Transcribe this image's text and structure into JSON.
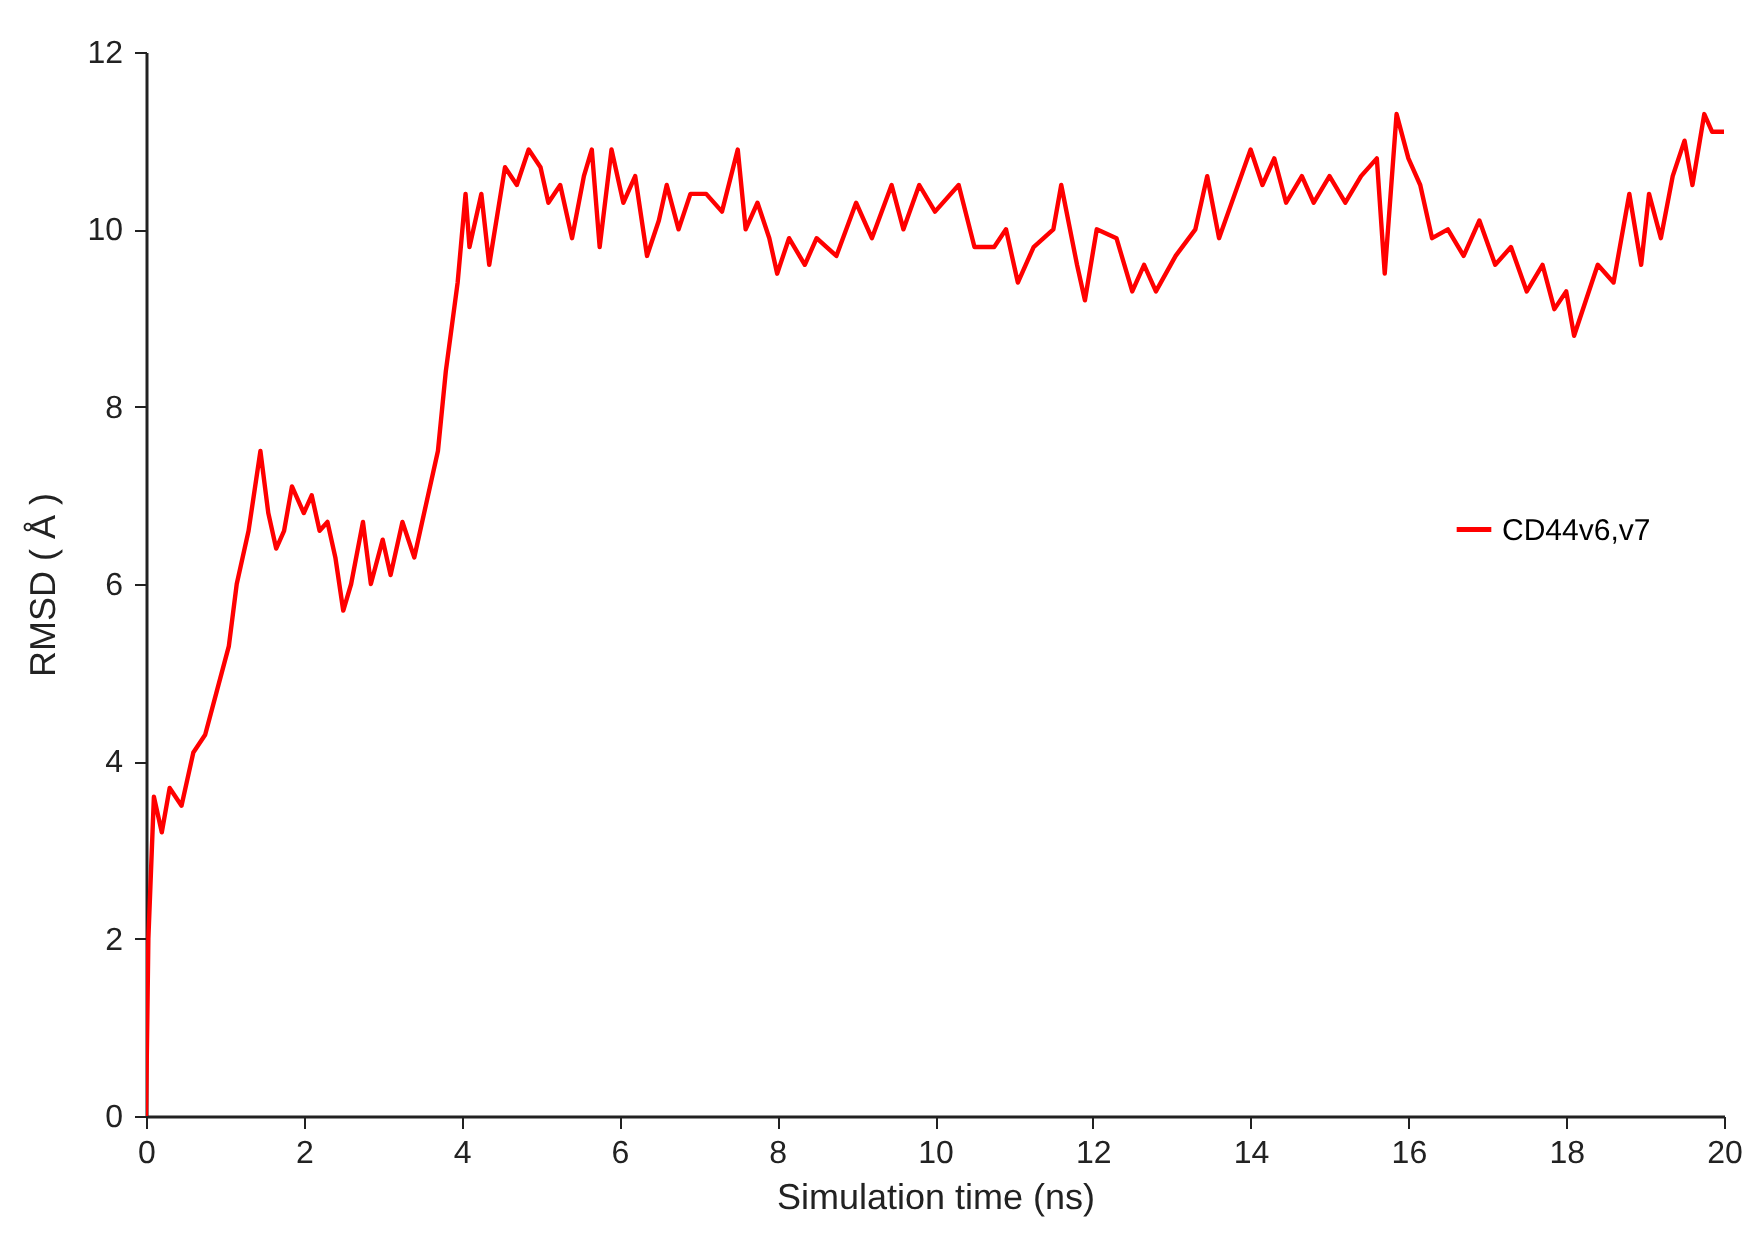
{
  "chart_data": {
    "type": "line",
    "xlabel": "Simulation time (ns)",
    "ylabel": "RMSD ( Å )",
    "xlim": [
      0,
      20
    ],
    "ylim": [
      0,
      12
    ],
    "xticks": [
      0,
      2,
      4,
      6,
      8,
      10,
      12,
      14,
      16,
      18,
      20
    ],
    "yticks": [
      0,
      2,
      4,
      6,
      8,
      10,
      12
    ],
    "grid": false,
    "legend": "right",
    "line_style": "solid",
    "marker": "none",
    "series": [
      {
        "name": "CD44v6,v7",
        "color": "#ff0000",
        "x": [
          0,
          0.03,
          0.1,
          0.2,
          0.3,
          0.45,
          0.6,
          0.75,
          0.9,
          1.05,
          1.15,
          1.3,
          1.45,
          1.55,
          1.65,
          1.75,
          1.85,
          2.0,
          2.1,
          2.2,
          2.3,
          2.4,
          2.5,
          2.6,
          2.75,
          2.85,
          3.0,
          3.1,
          3.25,
          3.4,
          3.55,
          3.7,
          3.8,
          3.95,
          4.05,
          4.1,
          4.25,
          4.35,
          4.55,
          4.7,
          4.85,
          5.0,
          5.1,
          5.25,
          5.4,
          5.55,
          5.65,
          5.75,
          5.9,
          6.05,
          6.2,
          6.35,
          6.5,
          6.6,
          6.75,
          6.9,
          7.1,
          7.3,
          7.5,
          7.6,
          7.75,
          7.9,
          8.0,
          8.15,
          8.35,
          8.5,
          8.75,
          9.0,
          9.2,
          9.45,
          9.6,
          9.8,
          10.0,
          10.3,
          10.5,
          10.75,
          10.9,
          11.05,
          11.25,
          11.5,
          11.6,
          11.8,
          11.9,
          12.05,
          12.3,
          12.5,
          12.65,
          12.8,
          13.05,
          13.3,
          13.45,
          13.6,
          13.8,
          14.0,
          14.15,
          14.3,
          14.45,
          14.65,
          14.8,
          15.0,
          15.2,
          15.4,
          15.6,
          15.7,
          15.85,
          16.0,
          16.15,
          16.3,
          16.5,
          16.7,
          16.9,
          17.1,
          17.3,
          17.5,
          17.7,
          17.85,
          18.0,
          18.1,
          18.25,
          18.4,
          18.6,
          18.8,
          18.95,
          19.05,
          19.2,
          19.35,
          19.5,
          19.6,
          19.75,
          19.85,
          20.0
        ],
        "values": [
          0,
          2.0,
          3.6,
          3.2,
          3.7,
          3.5,
          4.1,
          4.3,
          4.8,
          5.3,
          6.0,
          6.6,
          7.5,
          6.8,
          6.4,
          6.6,
          7.1,
          6.8,
          7.0,
          6.6,
          6.7,
          6.3,
          5.7,
          6.0,
          6.7,
          6.0,
          6.5,
          6.1,
          6.7,
          6.3,
          6.9,
          7.5,
          8.4,
          9.4,
          10.4,
          9.8,
          10.4,
          9.6,
          10.7,
          10.5,
          10.9,
          10.7,
          10.3,
          10.5,
          9.9,
          10.6,
          10.9,
          9.8,
          10.9,
          10.3,
          10.6,
          9.7,
          10.1,
          10.5,
          10.0,
          10.4,
          10.4,
          10.2,
          10.9,
          10.0,
          10.3,
          9.9,
          9.5,
          9.9,
          9.6,
          9.9,
          9.7,
          10.3,
          9.9,
          10.5,
          10.0,
          10.5,
          10.2,
          10.5,
          9.8,
          9.8,
          10.0,
          9.4,
          9.8,
          10.0,
          10.5,
          9.6,
          9.2,
          10.0,
          9.9,
          9.3,
          9.6,
          9.3,
          9.7,
          10.0,
          10.6,
          9.9,
          10.4,
          10.9,
          10.5,
          10.8,
          10.3,
          10.6,
          10.3,
          10.6,
          10.3,
          10.6,
          10.8,
          9.5,
          11.3,
          10.8,
          10.5,
          9.9,
          10.0,
          9.7,
          10.1,
          9.6,
          9.8,
          9.3,
          9.6,
          9.1,
          9.3,
          8.8,
          9.2,
          9.6,
          9.4,
          10.4,
          9.6,
          10.4,
          9.9,
          10.6,
          11.0,
          10.5,
          11.3,
          11.1,
          11.1
        ]
      }
    ]
  }
}
